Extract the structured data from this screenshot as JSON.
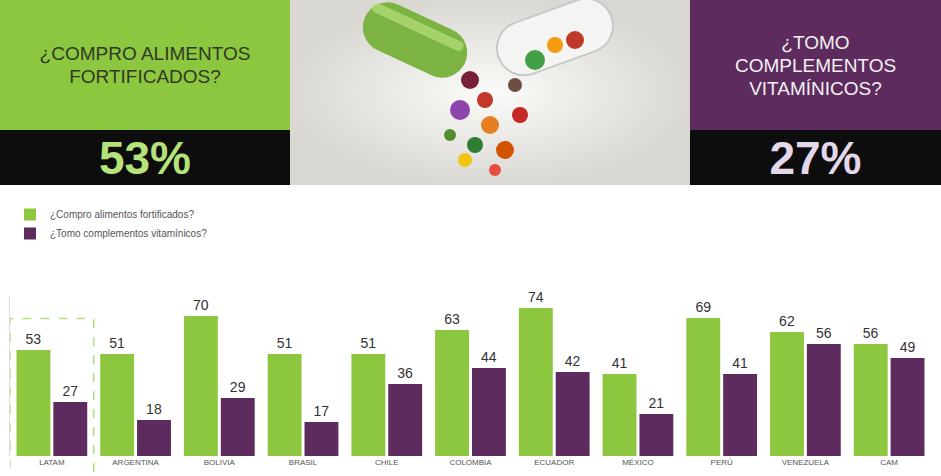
{
  "header": {
    "left": {
      "text": "¿COMPRO ALIMENTOS FORTIFICADOS?",
      "value": "53%"
    },
    "right": {
      "text": "¿TOMO COMPLEMENTOS VITAMÍNICOS?",
      "value": "27%"
    }
  },
  "chart_data": {
    "type": "bar",
    "categories": [
      "LATAM",
      "ARGENTINA",
      "BOLIVIA",
      "BRASIL",
      "CHILE",
      "COLOMBIA",
      "ECUADOR",
      "MÉXICO",
      "PERÚ",
      "VENEZUELA",
      "CAM"
    ],
    "series": [
      {
        "name": "¿Compro alimentos fortificados?",
        "color": "#8dc63f",
        "values": [
          53,
          51,
          70,
          51,
          51,
          63,
          74,
          41,
          69,
          62,
          56
        ]
      },
      {
        "name": "¿Tomo complementos vitamínicos?",
        "color": "#5e2b5e",
        "values": [
          27,
          18,
          29,
          17,
          36,
          44,
          42,
          21,
          41,
          56,
          49
        ]
      }
    ],
    "ylim": [
      0,
      80
    ],
    "yticks": [],
    "grid": false,
    "legend": "top left",
    "data_labels": true,
    "tick_labels": "x"
  }
}
